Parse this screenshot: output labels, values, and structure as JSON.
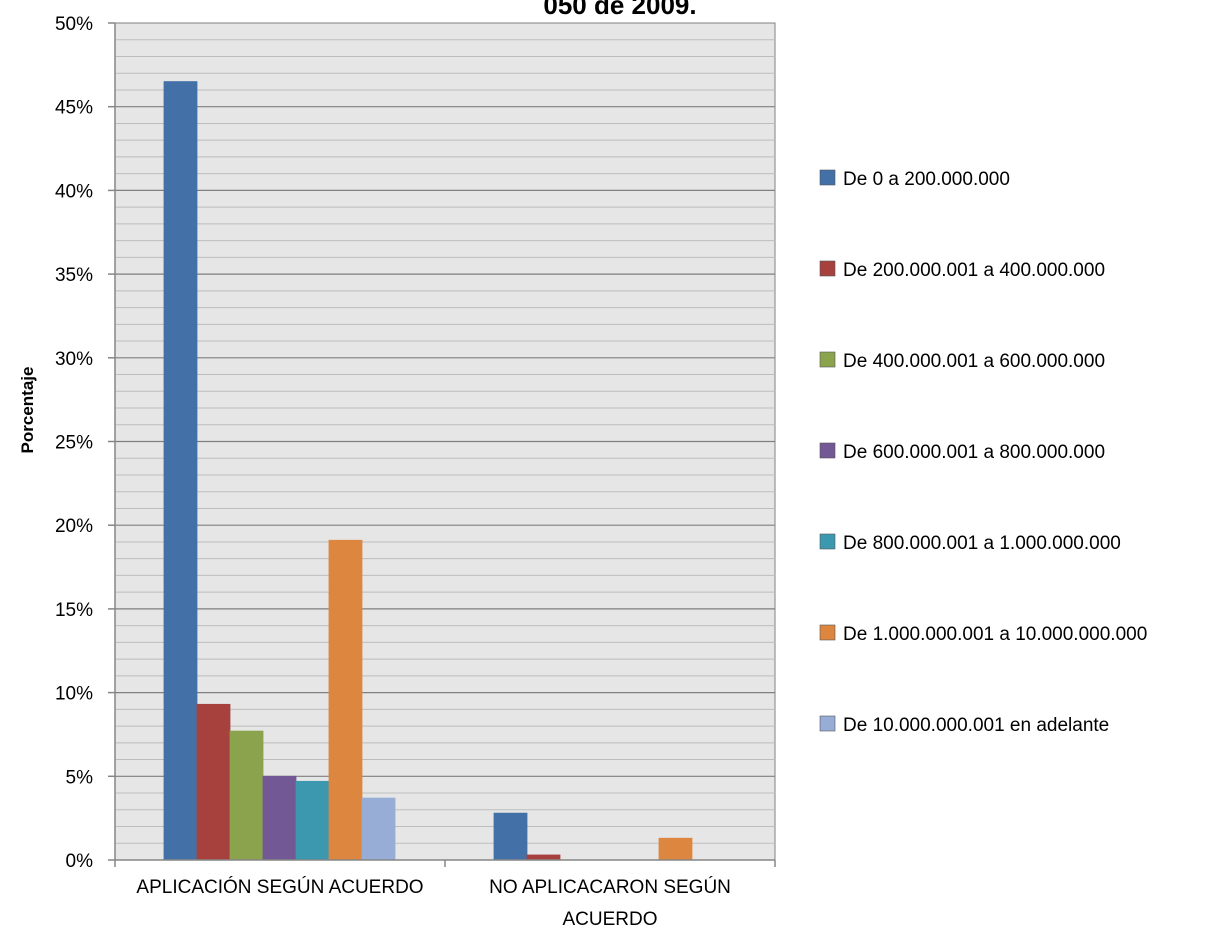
{
  "chart_data": {
    "type": "bar",
    "title": "050 de 2009.",
    "ylabel": "Porcentaje",
    "xlabel": "",
    "ylim": [
      0,
      50
    ],
    "yticks": [
      "0%",
      "5%",
      "10%",
      "15%",
      "20%",
      "25%",
      "30%",
      "35%",
      "40%",
      "45%",
      "50%"
    ],
    "ytick_values": [
      0,
      5,
      10,
      15,
      20,
      25,
      30,
      35,
      40,
      45,
      50
    ],
    "categories": [
      "APLICACIÓN SEGÚN ACUERDO",
      "NO APLICACARON SEGÚN ACUERDO"
    ],
    "grid": true,
    "legend_position": "right",
    "series": [
      {
        "name": "De 0 a 200.000.000",
        "color": "#4470A8",
        "values": [
          46.5,
          2.8
        ]
      },
      {
        "name": "De 200.000.001 a 400.000.000",
        "color": "#A7413E",
        "values": [
          9.3,
          0.3
        ]
      },
      {
        "name": "De 400.000.001 a 600.000.000",
        "color": "#8BA34C",
        "values": [
          7.7,
          0
        ]
      },
      {
        "name": "De 600.000.001 a 800.000.000",
        "color": "#725894",
        "values": [
          5.0,
          0
        ]
      },
      {
        "name": "De 800.000.001 a 1.000.000.000",
        "color": "#3C98AE",
        "values": [
          4.7,
          0
        ]
      },
      {
        "name": "De 1.000.000.001 a 10.000.000.000",
        "color": "#DC8640",
        "values": [
          19.1,
          1.3
        ]
      },
      {
        "name": "De 10.000.000.001 en adelante",
        "color": "#97ADD6",
        "values": [
          3.7,
          0
        ]
      }
    ]
  }
}
